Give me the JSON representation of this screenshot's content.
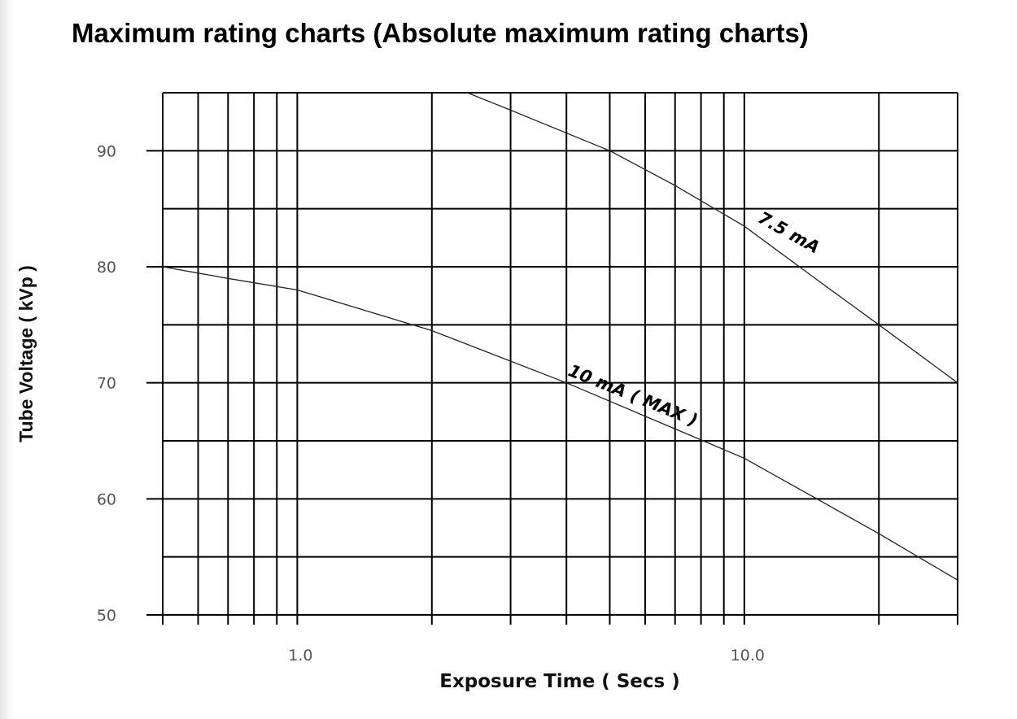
{
  "page": {
    "title": "Maximum rating charts (Absolute maximum rating charts)"
  },
  "chart_data": {
    "type": "line",
    "xlabel": "Exposure Time ( Secs )",
    "ylabel": "Tube Voltage ( kVp )",
    "xscale": "log",
    "xlim": [
      0.5,
      30
    ],
    "ylim": [
      50,
      95
    ],
    "x_tick_labels": [
      "1.0",
      "10.0"
    ],
    "x_ticks": [
      1,
      10
    ],
    "y_ticks": [
      50,
      60,
      70,
      80,
      90
    ],
    "y_tick_labels": [
      "50",
      "60",
      "70",
      "80",
      "90"
    ],
    "grid": true,
    "series": [
      {
        "label": "7.5 mA",
        "x": [
          2.4,
          3,
          5,
          7,
          10,
          15,
          20,
          30
        ],
        "y": [
          95,
          93.5,
          90,
          87,
          83.5,
          78.5,
          75,
          70
        ]
      },
      {
        "label": "10 mA ( MAX )",
        "x": [
          0.5,
          0.7,
          1,
          2,
          4,
          10,
          20,
          30
        ],
        "y": [
          80,
          79,
          78,
          74.5,
          70,
          63.5,
          57,
          53
        ]
      }
    ]
  }
}
